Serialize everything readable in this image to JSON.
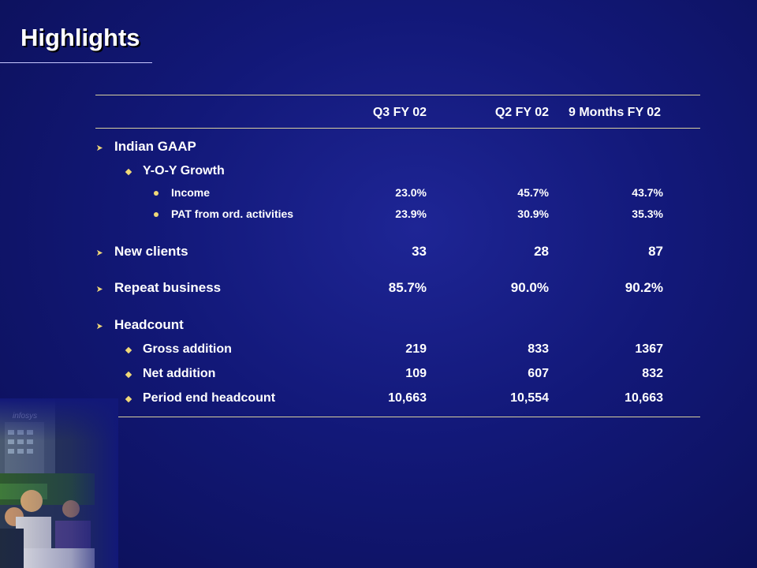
{
  "title": "Highlights",
  "colors": {
    "background": "#121878",
    "bullet": "#f0d878",
    "text": "#ffffff",
    "rule": "#d7cfa0"
  },
  "icons": {
    "level1": "arrow-bullet-icon",
    "level2": "diamond-bullet-icon",
    "level3": "dot-bullet-icon"
  },
  "columns": [
    "Q3 FY 02",
    "Q2 FY 02",
    "9 Months FY 02"
  ],
  "sections": {
    "gaap": {
      "label": "Indian GAAP",
      "yoy": {
        "label": "Y-O-Y Growth",
        "income": {
          "label": "Income",
          "values": [
            "23.0%",
            "45.7%",
            "43.7%"
          ]
        },
        "pat": {
          "label": "PAT from ord. activities",
          "values": [
            "23.9%",
            "30.9%",
            "35.3%"
          ]
        }
      }
    },
    "new_clients": {
      "label": "New clients",
      "values": [
        "33",
        "28",
        "87"
      ]
    },
    "repeat_business": {
      "label": "Repeat business",
      "values": [
        "85.7%",
        "90.0%",
        "90.2%"
      ]
    },
    "headcount": {
      "label": "Headcount",
      "gross": {
        "label": "Gross addition",
        "values": [
          "219",
          "833",
          "1367"
        ]
      },
      "net": {
        "label": "Net addition",
        "values": [
          "109",
          "607",
          "832"
        ]
      },
      "period_end": {
        "label": "Period end headcount",
        "values": [
          "10,663",
          "10,554",
          "10,663"
        ]
      }
    }
  },
  "photo_logo": "infosys"
}
